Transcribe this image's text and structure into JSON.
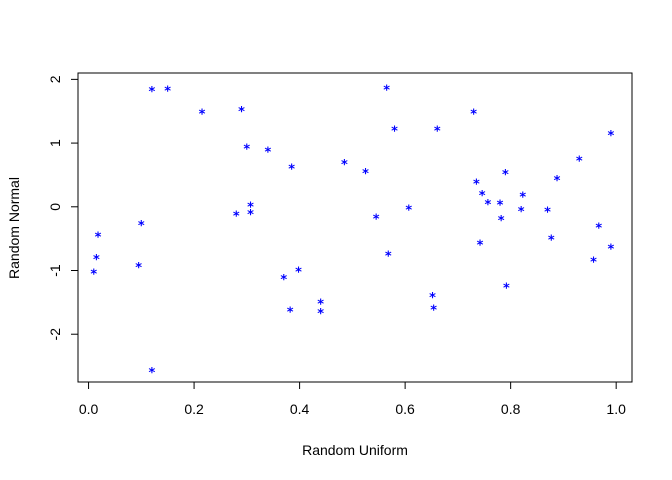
{
  "chart_data": {
    "type": "scatter",
    "title": "",
    "xlabel": "Random Uniform",
    "ylabel": "Random Normal",
    "xlim": [
      -0.02,
      1.03
    ],
    "ylim": [
      -2.75,
      2.1
    ],
    "xticks": [
      0.0,
      0.2,
      0.4,
      0.6,
      0.8,
      1.0
    ],
    "xtick_labels": [
      "0.0",
      "0.2",
      "0.4",
      "0.6",
      "0.8",
      "1.0"
    ],
    "yticks": [
      -2,
      -1,
      0,
      1,
      2
    ],
    "ytick_labels": [
      "-2",
      "-1",
      "0",
      "1",
      "2"
    ],
    "grid": false,
    "marker": "*",
    "marker_color": "#0000ff",
    "series": [
      {
        "points": [
          {
            "x": 0.01,
            "y": -1.03
          },
          {
            "x": 0.015,
            "y": -0.8
          },
          {
            "x": 0.018,
            "y": -0.45
          },
          {
            "x": 0.095,
            "y": -0.93
          },
          {
            "x": 0.1,
            "y": -0.27
          },
          {
            "x": 0.12,
            "y": 1.83
          },
          {
            "x": 0.12,
            "y": -2.58
          },
          {
            "x": 0.15,
            "y": 1.84
          },
          {
            "x": 0.215,
            "y": 1.48
          },
          {
            "x": 0.28,
            "y": -0.12
          },
          {
            "x": 0.29,
            "y": 1.52
          },
          {
            "x": 0.3,
            "y": 0.93
          },
          {
            "x": 0.307,
            "y": 0.02
          },
          {
            "x": 0.307,
            "y": -0.1
          },
          {
            "x": 0.34,
            "y": 0.88
          },
          {
            "x": 0.37,
            "y": -1.12
          },
          {
            "x": 0.382,
            "y": -1.63
          },
          {
            "x": 0.385,
            "y": 0.62
          },
          {
            "x": 0.398,
            "y": -1.0
          },
          {
            "x": 0.44,
            "y": -1.5
          },
          {
            "x": 0.44,
            "y": -1.65
          },
          {
            "x": 0.485,
            "y": 0.69
          },
          {
            "x": 0.525,
            "y": 0.55
          },
          {
            "x": 0.545,
            "y": -0.17
          },
          {
            "x": 0.565,
            "y": 1.86
          },
          {
            "x": 0.568,
            "y": -0.75
          },
          {
            "x": 0.58,
            "y": 1.21
          },
          {
            "x": 0.607,
            "y": -0.03
          },
          {
            "x": 0.652,
            "y": -1.4
          },
          {
            "x": 0.654,
            "y": -1.6
          },
          {
            "x": 0.661,
            "y": 1.21
          },
          {
            "x": 0.73,
            "y": 1.48
          },
          {
            "x": 0.735,
            "y": 0.38
          },
          {
            "x": 0.742,
            "y": -0.58
          },
          {
            "x": 0.746,
            "y": 0.2
          },
          {
            "x": 0.757,
            "y": 0.06
          },
          {
            "x": 0.78,
            "y": 0.05
          },
          {
            "x": 0.782,
            "y": -0.19
          },
          {
            "x": 0.79,
            "y": 0.53
          },
          {
            "x": 0.792,
            "y": -1.25
          },
          {
            "x": 0.82,
            "y": -0.05
          },
          {
            "x": 0.823,
            "y": 0.18
          },
          {
            "x": 0.87,
            "y": -0.06
          },
          {
            "x": 0.877,
            "y": -0.5
          },
          {
            "x": 0.888,
            "y": 0.44
          },
          {
            "x": 0.93,
            "y": 0.74
          },
          {
            "x": 0.957,
            "y": -0.84
          },
          {
            "x": 0.967,
            "y": -0.31
          },
          {
            "x": 0.99,
            "y": 1.14
          },
          {
            "x": 0.99,
            "y": -0.64
          }
        ]
      }
    ]
  }
}
